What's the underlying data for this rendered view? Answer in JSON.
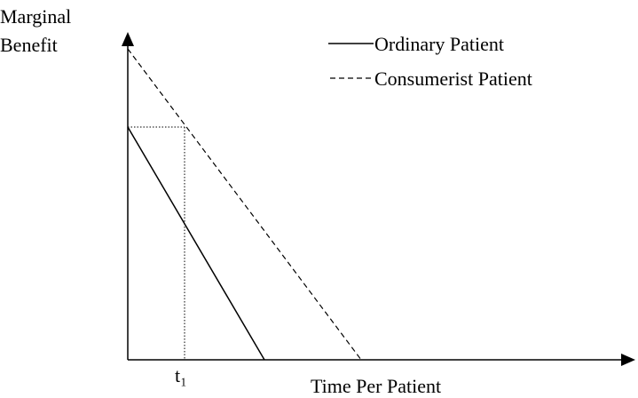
{
  "y_axis_label": [
    "Marginal",
    "Benefit"
  ],
  "x_axis_label": "Time Per Patient",
  "legend": [
    {
      "label": "Ordinary Patient"
    },
    {
      "label": "Consumerist Patient"
    }
  ],
  "x_tick": "t₁"
}
